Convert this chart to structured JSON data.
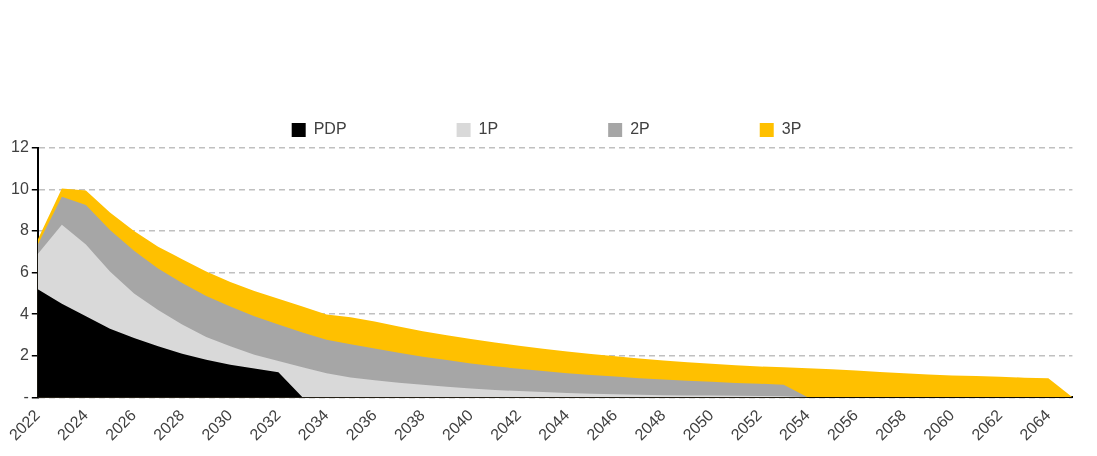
{
  "chart_data": {
    "type": "area",
    "categories": [
      "2022",
      null,
      "2024",
      null,
      "2026",
      null,
      "2028",
      null,
      "2030",
      null,
      "2032",
      null,
      "2034",
      null,
      "2036",
      null,
      "2038",
      null,
      "2040",
      null,
      "2042",
      null,
      "2044",
      null,
      "2046",
      null,
      "2048",
      null,
      "2050",
      null,
      "2052",
      null,
      "2054",
      null,
      "2056",
      null,
      "2058",
      null,
      "2060",
      null,
      "2062",
      null,
      "2064",
      null
    ],
    "series": [
      {
        "name": "PDP",
        "color": "#000000",
        "values": [
          5.2,
          4.5,
          3.9,
          3.3,
          2.85,
          2.45,
          2.1,
          1.8,
          1.57,
          1.38,
          1.2,
          0,
          0,
          0,
          0,
          0,
          0,
          0,
          0,
          0,
          0,
          0,
          0,
          0,
          0,
          0,
          0,
          0,
          0,
          0,
          0,
          0,
          0,
          0,
          0,
          0,
          0,
          0,
          0,
          0,
          0,
          0,
          0,
          0
        ]
      },
      {
        "name": "1P",
        "color": "#d9d9d9",
        "values": [
          6.9,
          8.3,
          7.35,
          6.05,
          5.0,
          4.2,
          3.5,
          2.9,
          2.45,
          2.05,
          1.75,
          1.45,
          1.15,
          0.95,
          0.82,
          0.7,
          0.6,
          0.5,
          0.42,
          0.35,
          0.3,
          0.25,
          0.2,
          0.17,
          0.14,
          0.12,
          0.1,
          0.09,
          0.08,
          0.07,
          0.06,
          0.05,
          0,
          0,
          0,
          0,
          0,
          0,
          0,
          0,
          0,
          0,
          0,
          0
        ]
      },
      {
        "name": "2P",
        "color": "#a6a6a6",
        "values": [
          7.35,
          9.65,
          9.25,
          8.05,
          7.05,
          6.2,
          5.5,
          4.87,
          4.37,
          3.9,
          3.5,
          3.12,
          2.77,
          2.55,
          2.35,
          2.14,
          1.95,
          1.79,
          1.62,
          1.49,
          1.37,
          1.26,
          1.16,
          1.07,
          1.0,
          0.92,
          0.85,
          0.8,
          0.75,
          0.69,
          0.65,
          0.6,
          0,
          0,
          0,
          0,
          0,
          0,
          0,
          0,
          0,
          0,
          0,
          0
        ]
      },
      {
        "name": "3P",
        "color": "#ffc000",
        "values": [
          7.6,
          10.05,
          9.95,
          8.9,
          8.0,
          7.25,
          6.65,
          6.05,
          5.55,
          5.12,
          4.74,
          4.37,
          3.98,
          3.85,
          3.65,
          3.41,
          3.18,
          2.99,
          2.8,
          2.64,
          2.48,
          2.33,
          2.2,
          2.08,
          1.97,
          1.86,
          1.77,
          1.69,
          1.61,
          1.54,
          1.48,
          1.44,
          1.4,
          1.35,
          1.29,
          1.22,
          1.15,
          1.1,
          1.05,
          1.02,
          0.99,
          0.94,
          0.91,
          0
        ]
      }
    ],
    "ylim": [
      0,
      12
    ],
    "yticks": [
      {
        "value": 0,
        "label": "-"
      },
      2,
      4,
      6,
      8,
      10,
      12
    ],
    "grid": "y",
    "legend": "top"
  }
}
